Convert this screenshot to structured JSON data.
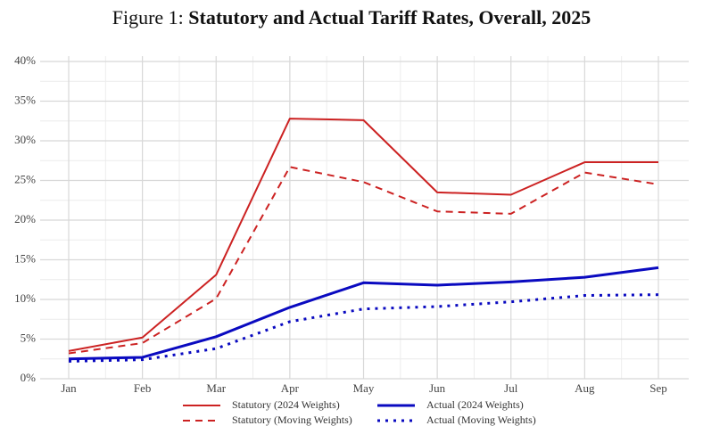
{
  "chart_data": {
    "type": "line",
    "figure_label": "Figure 1:",
    "title": "Statutory and Actual Tariff Rates, Overall, 2025",
    "categories": [
      "Jan",
      "Feb",
      "Mar",
      "Apr",
      "May",
      "Jun",
      "Jul",
      "Aug",
      "Sep"
    ],
    "series": [
      {
        "name": "Statutory (2024 Weights)",
        "color": "#cc2222",
        "dash": "solid",
        "width": 2,
        "values": [
          3.5,
          5.2,
          13.1,
          32.8,
          32.6,
          23.5,
          23.2,
          27.3,
          27.3
        ]
      },
      {
        "name": "Actual (2024 Weights)",
        "color": "#0a0ac0",
        "dash": "solid",
        "width": 3,
        "values": [
          2.5,
          2.7,
          5.3,
          9.0,
          12.1,
          11.8,
          12.2,
          12.8,
          14.0
        ]
      },
      {
        "name": "Statutory (Moving Weights)",
        "color": "#cc2222",
        "dash": "dashed",
        "width": 2,
        "values": [
          3.2,
          4.5,
          10.1,
          26.7,
          24.8,
          21.1,
          20.8,
          26.0,
          24.5
        ]
      },
      {
        "name": "Actual (Moving Weights)",
        "color": "#0a0ac0",
        "dash": "dotted",
        "width": 3,
        "values": [
          2.2,
          2.4,
          3.8,
          7.2,
          8.8,
          9.1,
          9.7,
          10.5,
          10.6
        ]
      }
    ],
    "ylim": [
      0,
      40
    ],
    "yticks": [
      {
        "value": 0,
        "label": "0%"
      },
      {
        "value": 5,
        "label": "5%"
      },
      {
        "value": 10,
        "label": "10%"
      },
      {
        "value": 15,
        "label": "15%"
      },
      {
        "value": 20,
        "label": "20%"
      },
      {
        "value": 25,
        "label": "25%"
      },
      {
        "value": 30,
        "label": "30%"
      },
      {
        "value": 35,
        "label": "35%"
      },
      {
        "value": 40,
        "label": "40%"
      }
    ],
    "grid": true
  }
}
